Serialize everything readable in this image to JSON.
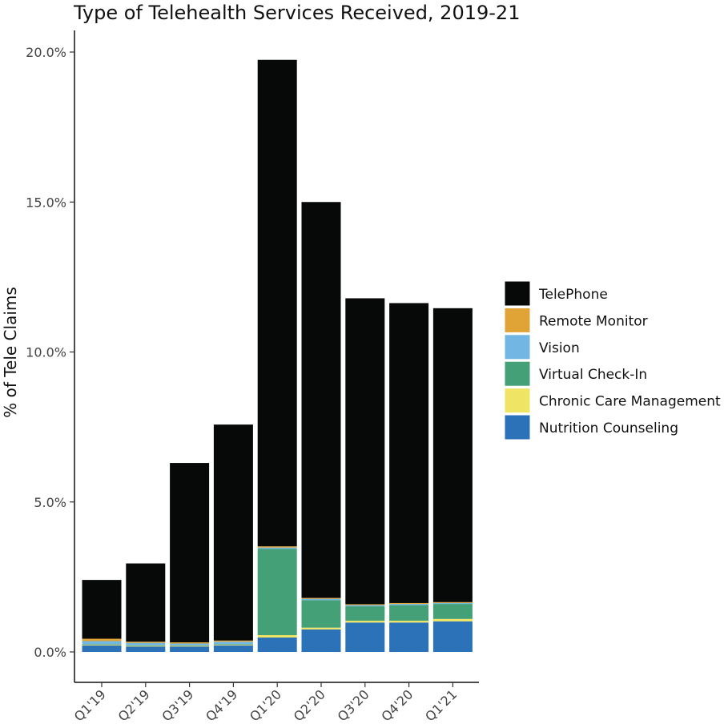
{
  "chart_data": {
    "type": "bar",
    "stacked": true,
    "title": "Type of Telehealth Services Received, 2019-21",
    "xlabel": "",
    "ylabel": "% of Tele Claims",
    "ylim": [
      0,
      20
    ],
    "y_ticks": [
      0,
      5,
      10,
      15,
      20
    ],
    "y_tick_labels": [
      "0.0%",
      "5.0%",
      "10.0%",
      "15.0%",
      "20.0%"
    ],
    "legend_position": "right",
    "categories": [
      "Q1'19",
      "Q2'19",
      "Q3'19",
      "Q4'19",
      "Q1'20",
      "Q2'20",
      "Q3'20",
      "Q4'20",
      "Q1'21"
    ],
    "series": [
      {
        "name": "Nutrition Counseling",
        "color": "#2b72b8",
        "values": [
          0.22,
          0.18,
          0.18,
          0.22,
          0.48,
          0.75,
          0.98,
          0.98,
          1.02
        ]
      },
      {
        "name": "Chronic Care Management",
        "color": "#f0e464",
        "values": [
          0.02,
          0.02,
          0.02,
          0.02,
          0.08,
          0.06,
          0.06,
          0.06,
          0.08
        ]
      },
      {
        "name": "Virtual Check-In",
        "color": "#43a077",
        "values": [
          0.02,
          0.02,
          0.02,
          0.02,
          2.88,
          0.92,
          0.48,
          0.52,
          0.5
        ]
      },
      {
        "name": "Vision",
        "color": "#72b6e4",
        "values": [
          0.1,
          0.08,
          0.06,
          0.08,
          0.04,
          0.04,
          0.04,
          0.04,
          0.03
        ]
      },
      {
        "name": "Remote Monitor",
        "color": "#e0a335",
        "values": [
          0.08,
          0.04,
          0.04,
          0.04,
          0.04,
          0.03,
          0.03,
          0.03,
          0.03
        ]
      },
      {
        "name": "TelePhone",
        "color": "#070808",
        "values": [
          1.96,
          2.61,
          5.98,
          7.2,
          16.22,
          13.2,
          10.2,
          10.0,
          9.8
        ]
      }
    ],
    "legend_order": [
      "TelePhone",
      "Remote Monitor",
      "Vision",
      "Virtual Check-In",
      "Chronic Care Management",
      "Nutrition Counseling"
    ]
  }
}
